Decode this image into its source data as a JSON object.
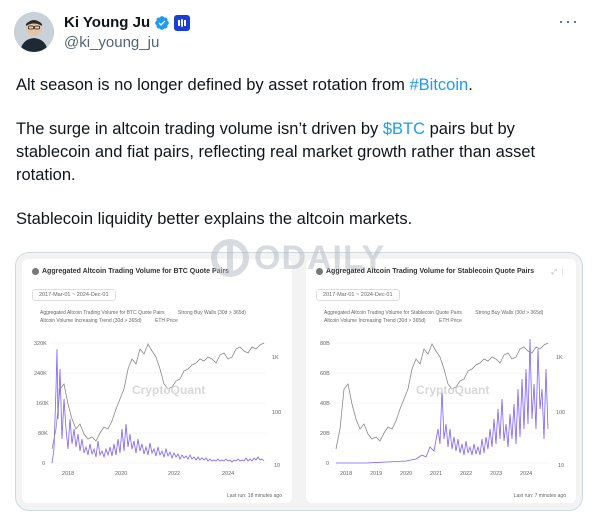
{
  "author": {
    "name": "Ki Young Ju",
    "handle": "@ki_young_ju"
  },
  "tweet": {
    "p1_before": "Alt season is no longer defined by asset rotation from ",
    "p1_link": "#Bitcoin",
    "p1_after": ".",
    "p2_before": "The surge in altcoin trading volume isn’t driven by ",
    "p2_link": "$BTC",
    "p2_after": " pairs but by stablecoin and fiat pairs, reflecting real market growth rather than asset rotation.",
    "p3": "Stablecoin liquidity better explains the altcoin markets."
  },
  "watermark": "ODAILY",
  "charts": [
    {
      "title": "Aggregated Altcoin Trading Volume for BTC Quote Pairs",
      "date_range": "2017-Mar-01 ~ 2024-Dec-01",
      "legend": [
        "Aggregated Altcoin Trading Volume for BTC Quote Pairs",
        "Strong Buy Walls (30d > 365d)",
        "Altcoin Volume Increasing Trend (30d > 365d)",
        "ETH Price"
      ],
      "y_left_ticks": [
        "320K",
        "240K",
        "160K",
        "80K",
        "0"
      ],
      "y_right_ticks": [
        "1K",
        "100",
        "10"
      ],
      "x_ticks": [
        "2018",
        "2020",
        "2022",
        "2024"
      ],
      "brand": "CryptoQuant",
      "footer": "Last run: 18 minutes ago"
    },
    {
      "title": "Aggregated Altcoin Trading Volume for Stablecoin Quote Pairs",
      "date_range": "2017-Mar-01 ~ 2024-Dec-01",
      "legend": [
        "Aggregated Altcoin Trading Volume for Stablecoin Quote Pairs",
        "Strong Buy Walls (30d > 365d)",
        "Altcoin Volume Increasing Trend (30d > 365d)",
        "ETH Price"
      ],
      "y_left_ticks": [
        "80B",
        "60B",
        "40B",
        "20B",
        "0"
      ],
      "y_right_ticks": [
        "1K",
        "100",
        "10"
      ],
      "x_ticks": [
        "2018",
        "2019",
        "2020",
        "2021",
        "2022",
        "2023",
        "2024"
      ],
      "brand": "CryptoQuant",
      "footer": "Last run: 7 minutes ago"
    }
  ],
  "colors": {
    "link": "#1d9bf0",
    "volume": "#7b61ff",
    "eth_price": "#888888"
  }
}
